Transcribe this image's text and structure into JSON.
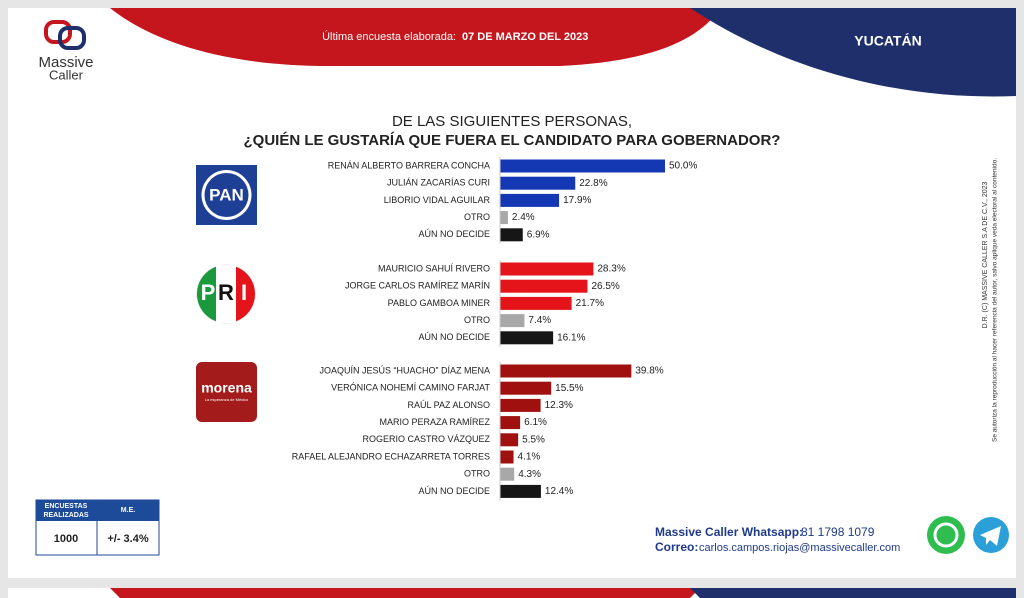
{
  "header": {
    "survey_label": "Última encuesta elaborada:",
    "date": "07 DE MARZO DEL 2023",
    "state": "YUCATÁN"
  },
  "brand": {
    "name_1": "Massive",
    "name_2": "Caller"
  },
  "title": {
    "line_1": "DE LAS SIGUIENTES PERSONAS,",
    "line_2": "¿QUIÉN LE GUSTARÍA QUE FUERA EL CANDIDATO PARA GOBERNADOR?"
  },
  "logos": {
    "pan": "PAN",
    "pri_1": "P",
    "pri_2": "R",
    "pri_3": "I",
    "morena": "morena",
    "morena_tagline": "La esperanza de México"
  },
  "sample": {
    "header_1a": "ENCUESTAS",
    "header_1b": "REALIZADAS",
    "header_2": "M.E.",
    "surveys": "1000",
    "margin": "+/- 3.4%"
  },
  "footer": {
    "whatsapp_label": "Massive Caller Whatsapp:",
    "whatsapp": "81 1798 1079",
    "email_label": "Correo:",
    "email": "carlos.campos.riojas@massivecaller.com"
  },
  "legal": {
    "line_1": "D.R. (C) MASSIVE CALLER S.A DE C.V., 2023",
    "line_2": "Se autoriza la reproducción al hacer referencia del autor, salvo aplique veda electoral al contenido."
  },
  "chart_data": [
    {
      "type": "bar",
      "categories": [
        "RENÁN ALBERTO BARRERA CONCHA",
        "JULIÁN ZACARÍAS CURI",
        "LIBORIO  VIDAL AGUILAR",
        "OTRO",
        "AÚN NO DECIDE"
      ],
      "values": [
        50.0,
        22.8,
        17.9,
        2.4,
        6.9
      ],
      "value_labels": [
        "50.0%",
        "22.8%",
        "17.9%",
        "2.4%",
        "6.9%"
      ],
      "colors": [
        "#1437b4",
        "#1437b4",
        "#1437b4",
        "#a8a8a8",
        "#161616"
      ]
    },
    {
      "type": "bar",
      "categories": [
        "MAURICIO SAHUÍ RIVERO",
        "JORGE CARLOS RAMÍREZ MARÍN",
        "PABLO GAMBOA MINER",
        "OTRO",
        "AÚN NO DECIDE"
      ],
      "values": [
        28.3,
        26.5,
        21.7,
        7.4,
        16.1
      ],
      "value_labels": [
        "28.3%",
        "26.5%",
        "21.7%",
        "7.4%",
        "16.1%"
      ],
      "colors": [
        "#e5141b",
        "#e5141b",
        "#e5141b",
        "#a8a8a8",
        "#161616"
      ]
    },
    {
      "type": "bar",
      "categories": [
        "JOAQUÍN JESÚS “HUACHO” DÍAZ MENA",
        "VERÓNICA NOHEMÍ CAMINO FARJAT",
        "RAÚL PAZ ALONSO",
        "MARIO PERAZA RAMÍREZ",
        "ROGERIO CASTRO VÁZQUEZ",
        "RAFAEL ALEJANDRO ECHAZARRETA TORRES",
        "OTRO",
        "AÚN NO DECIDE"
      ],
      "values": [
        39.8,
        15.5,
        12.3,
        6.1,
        5.5,
        4.1,
        4.3,
        12.4
      ],
      "value_labels": [
        "39.8%",
        "15.5%",
        "12.3%",
        "6.1%",
        "5.5%",
        "4.1%",
        "4.3%",
        "12.4%"
      ],
      "colors": [
        "#a0100f",
        "#a0100f",
        "#a0100f",
        "#a0100f",
        "#a0100f",
        "#a0100f",
        "#a8a8a8",
        "#161616"
      ]
    }
  ]
}
